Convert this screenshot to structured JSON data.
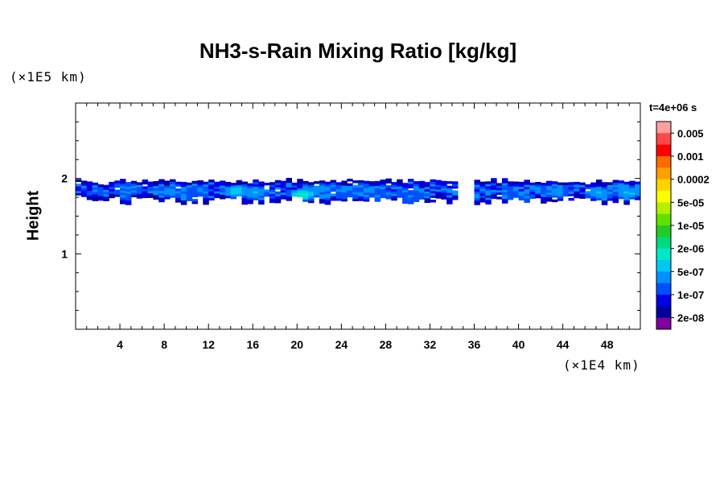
{
  "chart_data": {
    "type": "heatmap",
    "title": "NH3-s-Rain Mixing Ratio [kg/kg]",
    "xlabel": "",
    "ylabel": "Height",
    "x_unit_note": "(×1E4 km)",
    "y_unit_note": "(×1E5 km)",
    "time_label": "t=4e+06 s",
    "xlim": [
      0,
      51
    ],
    "ylim": [
      0,
      3
    ],
    "x_ticks": [
      4,
      8,
      12,
      16,
      20,
      24,
      28,
      32,
      36,
      40,
      44,
      48
    ],
    "y_ticks": [
      1,
      2
    ],
    "colorbar": {
      "levels": [
        "0.005",
        "0.001",
        "0.0002",
        "5e-05",
        "1e-05",
        "2e-06",
        "5e-07",
        "1e-07",
        "2e-08"
      ],
      "colors": [
        "#ffa0a0",
        "#ff4848",
        "#ff0000",
        "#ff6a00",
        "#ffa000",
        "#ffd500",
        "#ffff00",
        "#b4f000",
        "#60e000",
        "#22cc22",
        "#00d880",
        "#00e8c8",
        "#00c8f0",
        "#0090ff",
        "#0050ff",
        "#0000e8",
        "#0000a0",
        "#8000a0"
      ]
    },
    "band": {
      "y_top": 1.98,
      "y_bottom": 1.65,
      "gaps_x": [
        [
          34.5,
          35.8
        ]
      ],
      "hotspots": [
        {
          "x": 4.5,
          "y": 1.85,
          "level": 3
        },
        {
          "x": 8.2,
          "y": 1.82,
          "level": 4
        },
        {
          "x": 10.5,
          "y": 1.78,
          "level": 3
        },
        {
          "x": 14.3,
          "y": 1.82,
          "level": 6
        },
        {
          "x": 15.8,
          "y": 1.8,
          "level": 5
        },
        {
          "x": 20.3,
          "y": 1.78,
          "level": 7
        },
        {
          "x": 21.8,
          "y": 1.84,
          "level": 4
        },
        {
          "x": 24.5,
          "y": 1.8,
          "level": 3
        },
        {
          "x": 27.0,
          "y": 1.78,
          "level": 3
        },
        {
          "x": 30.0,
          "y": 1.74,
          "level": 3
        },
        {
          "x": 39.8,
          "y": 1.74,
          "level": 3
        },
        {
          "x": 43.2,
          "y": 1.82,
          "level": 4
        },
        {
          "x": 47.0,
          "y": 1.8,
          "level": 5
        },
        {
          "x": 49.7,
          "y": 1.8,
          "level": 5
        }
      ]
    }
  }
}
